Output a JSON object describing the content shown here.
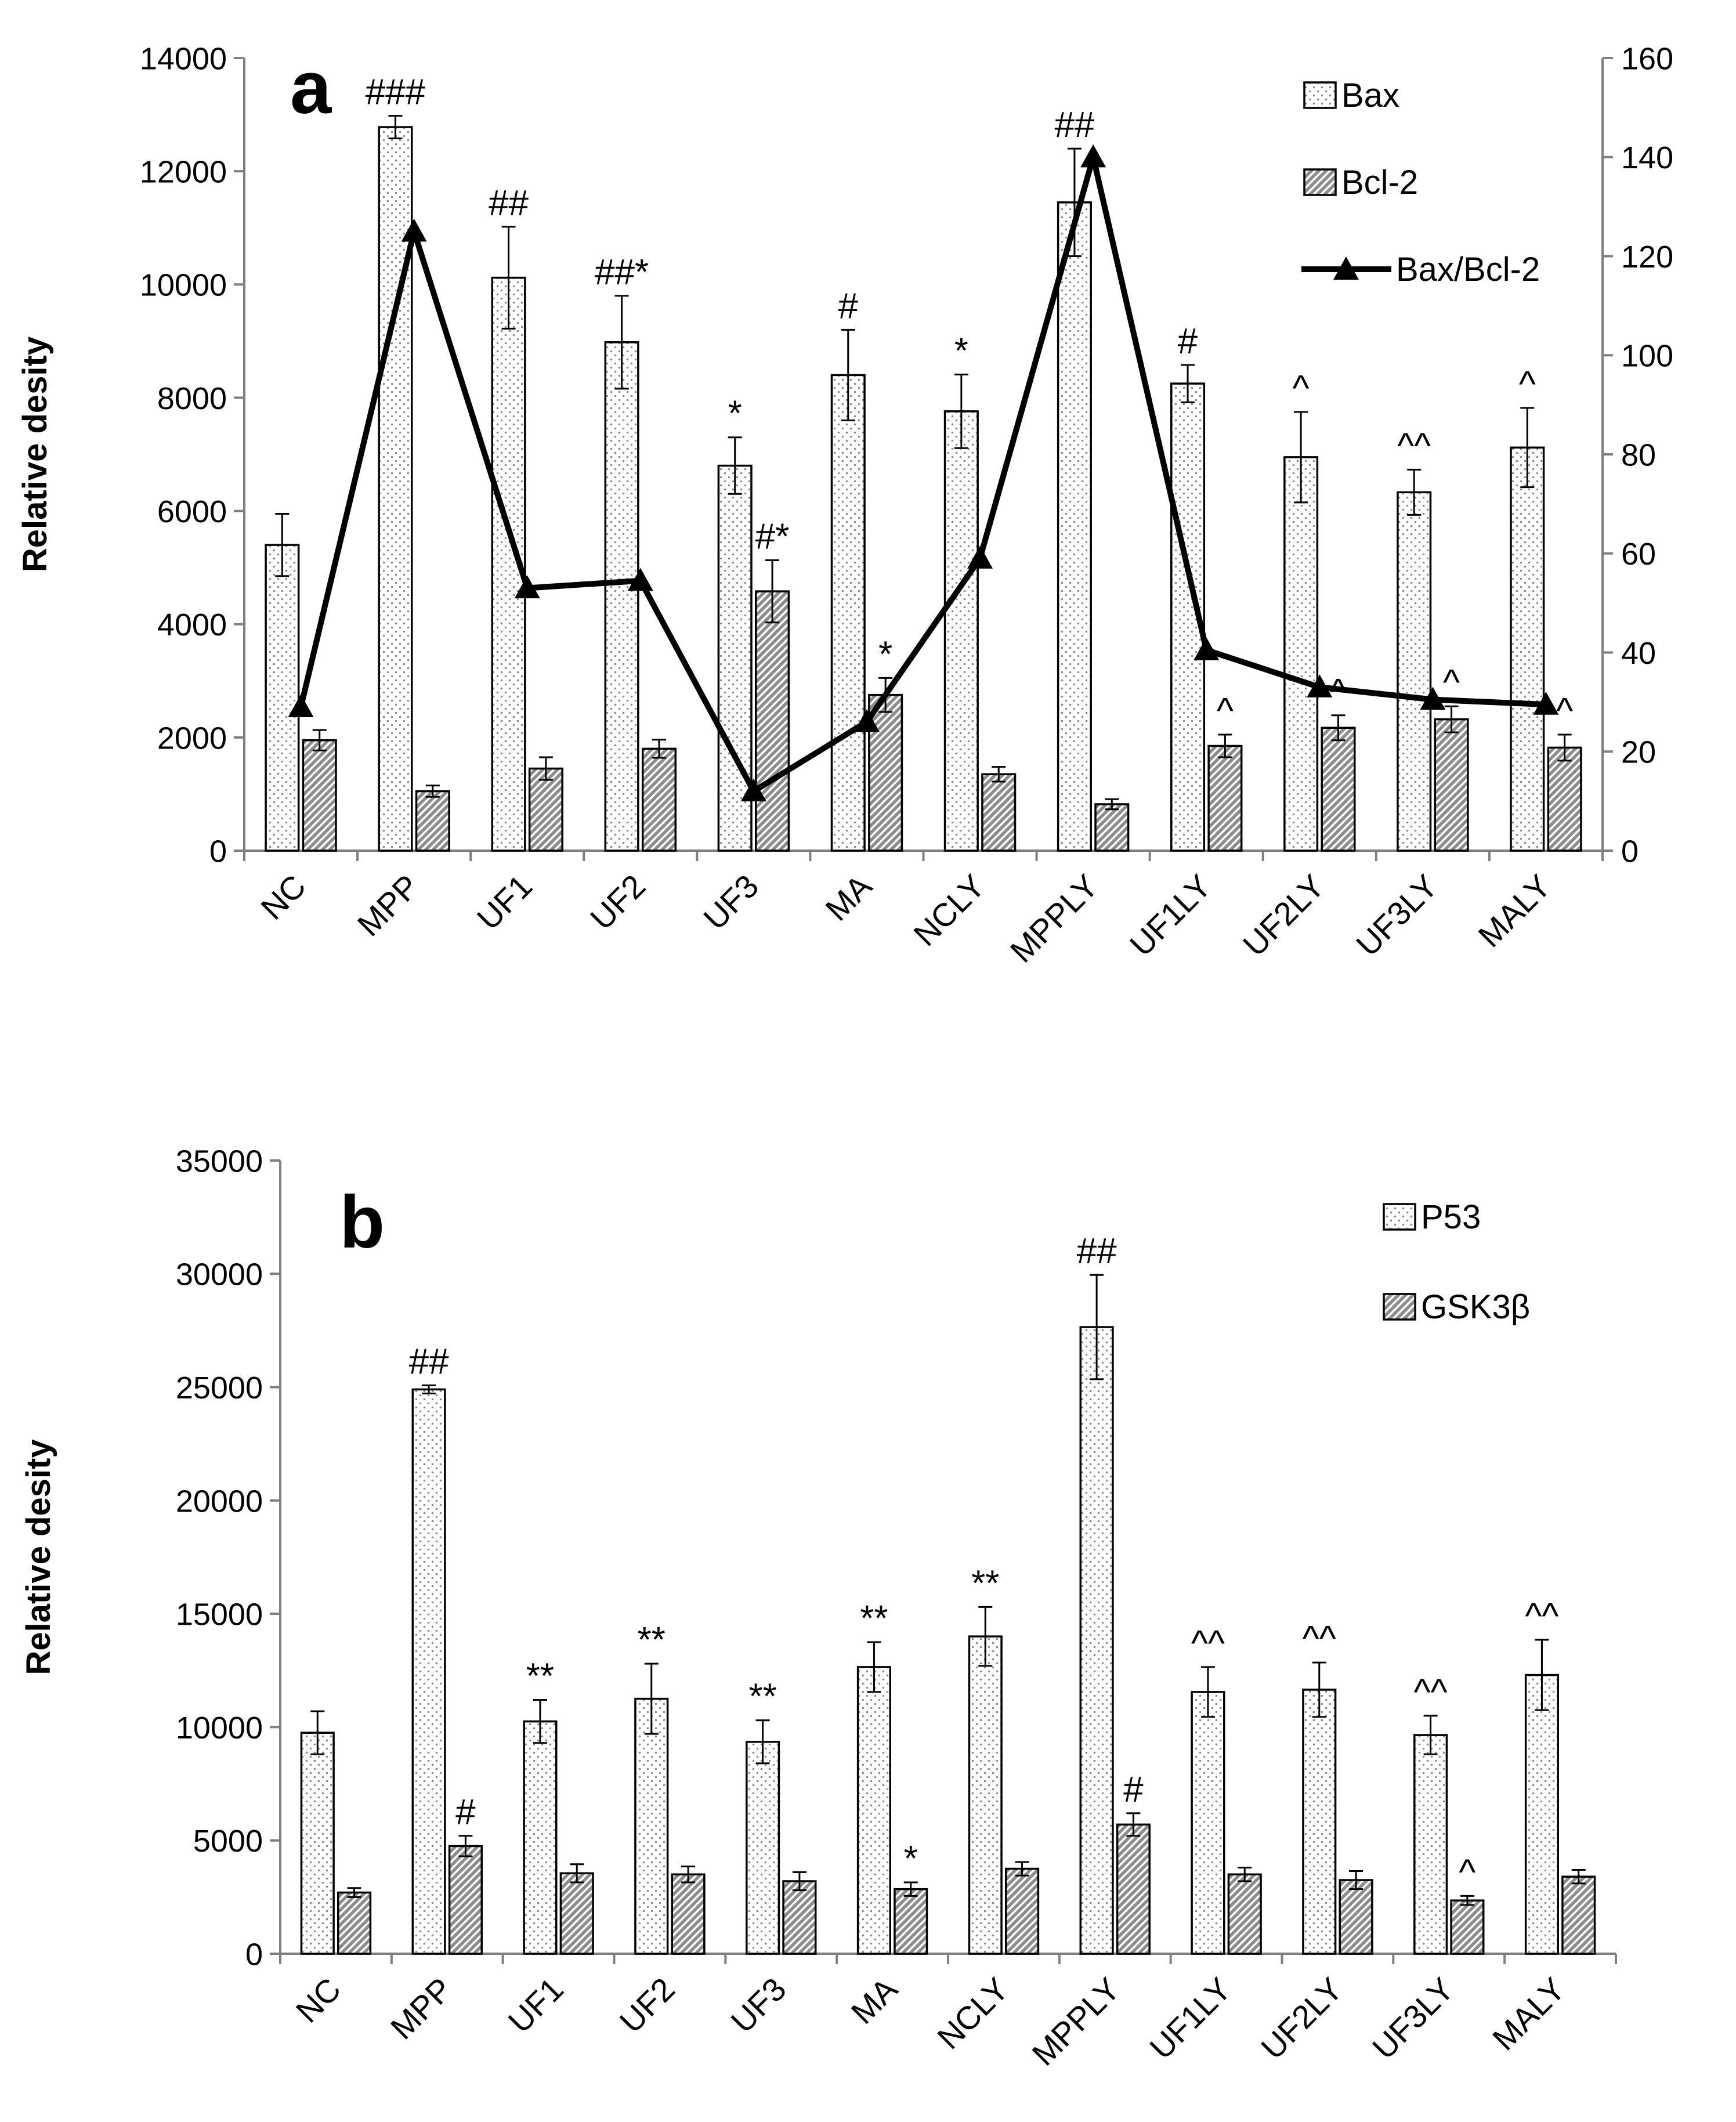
{
  "chart_data": [
    {
      "type": "bar",
      "panel_label": "a",
      "categories": [
        "NC",
        "MPP",
        "UF1",
        "UF2",
        "UF3",
        "MA",
        "NCLY",
        "MPPLY",
        "UF1LY",
        "UF2LY",
        "UF3LY",
        "MALY"
      ],
      "ylabel": "Relative desity",
      "ylim": [
        0,
        14000
      ],
      "yticks": [
        0,
        2000,
        4000,
        6000,
        8000,
        10000,
        12000,
        14000
      ],
      "y2lim": [
        0,
        160
      ],
      "y2ticks": [
        0,
        20,
        40,
        60,
        80,
        100,
        120,
        140,
        160
      ],
      "legend_position": "top-right",
      "series": [
        {
          "name": "Bax",
          "kind": "bar",
          "pattern": "dots",
          "axis": "left",
          "values": [
            5400,
            12780,
            10120,
            8980,
            6800,
            8400,
            7760,
            11450,
            8250,
            6950,
            6330,
            7120
          ],
          "errors": [
            550,
            200,
            900,
            820,
            500,
            800,
            650,
            950,
            330,
            800,
            400,
            700
          ],
          "annotations": [
            "",
            "###",
            "##",
            "##*",
            "*",
            "#",
            "*",
            "##",
            "#",
            "^",
            "^^",
            "^"
          ]
        },
        {
          "name": "Bcl-2",
          "kind": "bar",
          "pattern": "hatch",
          "axis": "left",
          "values": [
            1950,
            1050,
            1450,
            1800,
            4580,
            2750,
            1350,
            820,
            1850,
            2170,
            2320,
            1820
          ],
          "errors": [
            180,
            100,
            200,
            160,
            550,
            300,
            130,
            90,
            200,
            220,
            230,
            230
          ],
          "annotations": [
            "",
            "",
            "",
            "",
            "#*",
            "*",
            "",
            "",
            "^",
            "^",
            "^",
            "^"
          ]
        },
        {
          "name": "Bax/Bcl-2",
          "kind": "line",
          "marker": "triangle",
          "axis": "right",
          "values": [
            29,
            125,
            53,
            54.5,
            12,
            26,
            59,
            140,
            40.5,
            33,
            30.5,
            29.5
          ]
        }
      ]
    },
    {
      "type": "bar",
      "panel_label": "b",
      "categories": [
        "NC",
        "MPP",
        "UF1",
        "UF2",
        "UF3",
        "MA",
        "NCLY",
        "MPPLY",
        "UF1LY",
        "UF2LY",
        "UF3LY",
        "MALY"
      ],
      "ylabel": "Relative desity",
      "ylim": [
        0,
        35000
      ],
      "yticks": [
        0,
        5000,
        10000,
        15000,
        20000,
        25000,
        30000,
        35000
      ],
      "legend_position": "top-right",
      "series": [
        {
          "name": "P53",
          "kind": "bar",
          "pattern": "dots",
          "axis": "left",
          "values": [
            9750,
            24900,
            10250,
            11250,
            9350,
            12650,
            14000,
            27650,
            11550,
            11650,
            9650,
            12300
          ],
          "errors": [
            950,
            180,
            950,
            1550,
            950,
            1100,
            1300,
            2300,
            1100,
            1200,
            850,
            1550
          ],
          "annotations": [
            "",
            "##",
            "**",
            "**",
            "**",
            "**",
            "**",
            "##",
            "^^",
            "^^",
            "^^",
            "^^"
          ]
        },
        {
          "name": "GSK3β",
          "kind": "bar",
          "pattern": "hatch",
          "axis": "left",
          "values": [
            2700,
            4750,
            3550,
            3500,
            3200,
            2850,
            3750,
            5700,
            3500,
            3250,
            2350,
            3400
          ],
          "errors": [
            200,
            450,
            400,
            350,
            400,
            300,
            300,
            500,
            300,
            400,
            200,
            300
          ],
          "annotations": [
            "",
            "#",
            "",
            "",
            "",
            "*",
            "",
            "#",
            "",
            "",
            "^",
            ""
          ]
        }
      ]
    }
  ]
}
